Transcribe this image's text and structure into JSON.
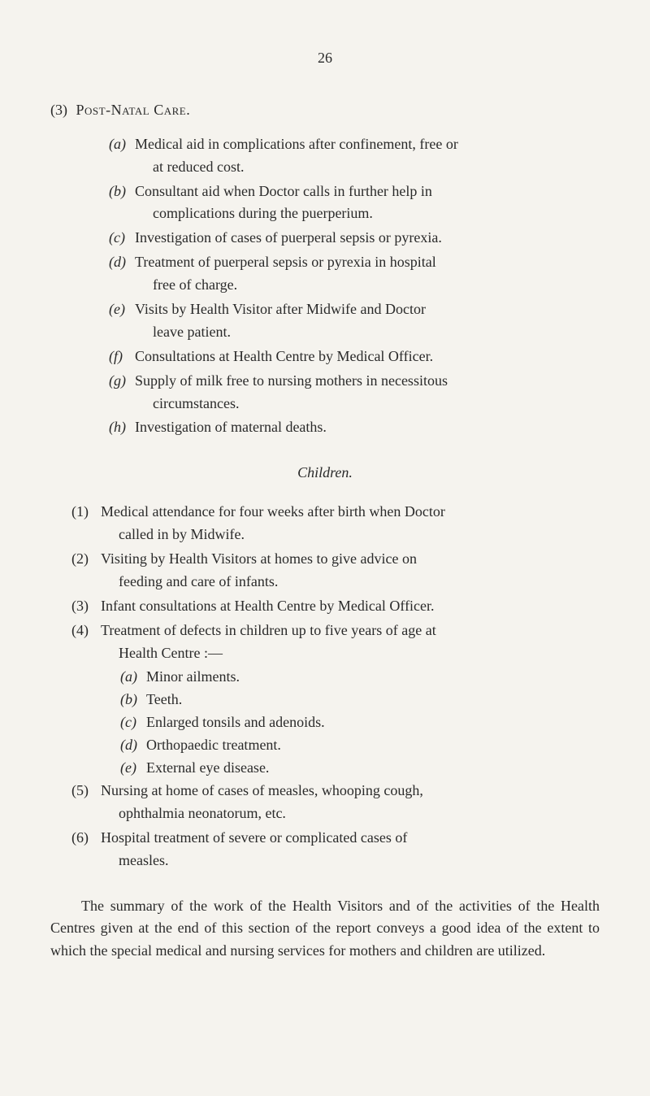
{
  "page_number": "26",
  "section3": {
    "number": "(3)",
    "title": "Post-Natal Care."
  },
  "post_natal": [
    {
      "m": "(a)",
      "l1": "Medical aid in complications after confinement, free or",
      "l2": "at reduced cost."
    },
    {
      "m": "(b)",
      "l1": "Consultant aid when Doctor calls in further help in",
      "l2": "complications during the puerperium."
    },
    {
      "m": "(c)",
      "l1": "Investigation of cases of puerperal sepsis or pyrexia."
    },
    {
      "m": "(d)",
      "l1": "Treatment of puerperal sepsis or pyrexia in hospital",
      "l2": "free of charge."
    },
    {
      "m": "(e)",
      "l1": "Visits by Health Visitor after Midwife and Doctor",
      "l2": "leave patient."
    },
    {
      "m": "(f)",
      "l1": "Consultations at Health Centre by Medical Officer."
    },
    {
      "m": "(g)",
      "l1": "Supply of milk free to nursing mothers in necessitous",
      "l2": "circumstances."
    },
    {
      "m": "(h)",
      "l1": "Investigation of maternal deaths."
    }
  ],
  "children_heading": "Children.",
  "children": [
    {
      "m": "(1)",
      "l1": "Medical attendance for four weeks after birth when Doctor",
      "l2": "called in by Midwife."
    },
    {
      "m": "(2)",
      "l1": "Visiting by Health Visitors at homes to give advice on",
      "l2": "feeding and care of infants."
    },
    {
      "m": "(3)",
      "l1": "Infant consultations at Health Centre by Medical Officer."
    },
    {
      "m": "(4)",
      "l1": "Treatment of defects in children up to five years of age at",
      "l2": "Health Centre :—",
      "sub": [
        {
          "m": "(a)",
          "t": "Minor ailments."
        },
        {
          "m": "(b)",
          "t": "Teeth."
        },
        {
          "m": "(c)",
          "t": "Enlarged tonsils and adenoids."
        },
        {
          "m": "(d)",
          "t": "Orthopaedic treatment."
        },
        {
          "m": "(e)",
          "t": "External eye disease."
        }
      ]
    },
    {
      "m": "(5)",
      "l1": "Nursing at home of cases of measles, whooping cough,",
      "l2": "ophthalmia neonatorum, etc."
    },
    {
      "m": "(6)",
      "l1": "Hospital treatment of severe or complicated cases of",
      "l2": "measles."
    }
  ],
  "summary": "The summary of the work of the Health Visitors and of the activities of the Health Centres given at the end of this section of the report conveys a good idea of the extent to which the special medical and nursing services for mothers and children are utilized."
}
